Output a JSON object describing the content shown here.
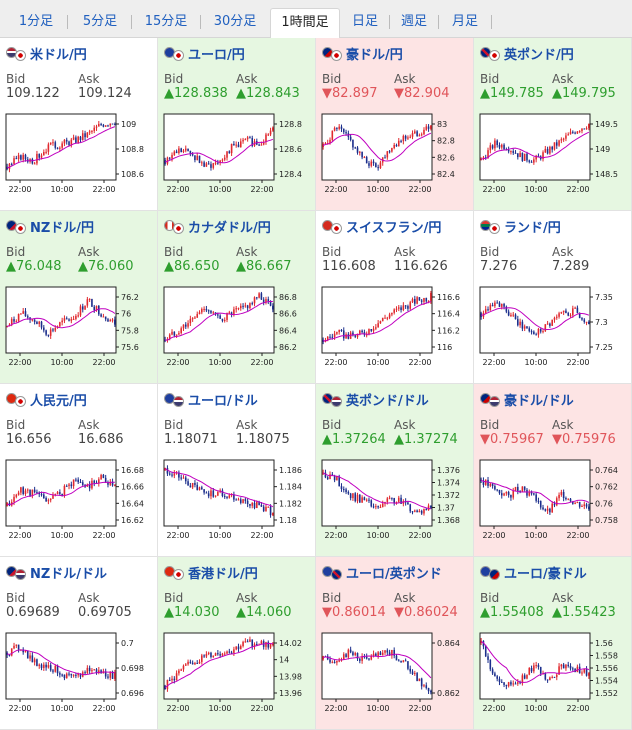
{
  "timeframe_tabs": [
    {
      "label": "1分足",
      "active": false
    },
    {
      "label": "5分足",
      "active": false
    },
    {
      "label": "15分足",
      "active": false
    },
    {
      "label": "30分足",
      "active": false
    },
    {
      "label": "1時間足",
      "active": true
    },
    {
      "label": "日足",
      "active": false
    },
    {
      "label": "週足",
      "active": false
    },
    {
      "label": "月足",
      "active": false
    }
  ],
  "labels": {
    "bid": "Bid",
    "ask": "Ask"
  },
  "colors": {
    "up": "#2e9e2e",
    "down": "#e0555a",
    "flat": "#444444",
    "link": "#1a4da8",
    "candle_up": "#e0282e",
    "candle_down": "#1b2e8c",
    "ma": "#c000c0"
  },
  "pairs": [
    {
      "name": "米ドル/円",
      "flags": [
        "usa-flag-icon",
        "japan-flag-icon"
      ],
      "bid": "109.122",
      "ask": "109.124",
      "trend": "flat",
      "chart": {
        "y_ticks": [
          "109",
          "108.8",
          "108.6"
        ],
        "x_ticks": [
          "22:00",
          "10:00",
          "22:00"
        ]
      }
    },
    {
      "name": "ユーロ/円",
      "flags": [
        "eu-flag-icon",
        "japan-flag-icon"
      ],
      "bid": "▲128.838",
      "ask": "▲128.843",
      "trend": "up",
      "chart": {
        "y_ticks": [
          "128.8",
          "128.6",
          "128.4"
        ],
        "x_ticks": [
          "22:00",
          "10:00",
          "22:00"
        ]
      }
    },
    {
      "name": "豪ドル/円",
      "flags": [
        "australia-flag-icon",
        "japan-flag-icon"
      ],
      "bid": "▼82.897",
      "ask": "▼82.904",
      "trend": "down",
      "chart": {
        "y_ticks": [
          "83",
          "82.8",
          "82.6",
          "82.4"
        ],
        "x_ticks": [
          "22:00",
          "10:00",
          "22:00"
        ]
      }
    },
    {
      "name": "英ポンド/円",
      "flags": [
        "uk-flag-icon",
        "japan-flag-icon"
      ],
      "bid": "▲149.785",
      "ask": "▲149.795",
      "trend": "up",
      "chart": {
        "y_ticks": [
          "149.5",
          "149",
          "148.5"
        ],
        "x_ticks": [
          "22:00",
          "10:00",
          "22:00"
        ]
      }
    },
    {
      "name": "NZドル/円",
      "flags": [
        "nz-flag-icon",
        "japan-flag-icon"
      ],
      "bid": "▲76.048",
      "ask": "▲76.060",
      "trend": "up",
      "chart": {
        "y_ticks": [
          "76.2",
          "76",
          "75.8",
          "75.6"
        ],
        "x_ticks": [
          "22:00",
          "10:00",
          "22:00"
        ]
      }
    },
    {
      "name": "カナダドル/円",
      "flags": [
        "canada-flag-icon",
        "japan-flag-icon"
      ],
      "bid": "▲86.650",
      "ask": "▲86.667",
      "trend": "up",
      "chart": {
        "y_ticks": [
          "86.8",
          "86.6",
          "86.4",
          "86.2"
        ],
        "x_ticks": [
          "22:00",
          "10:00",
          "22:00"
        ]
      }
    },
    {
      "name": "スイスフラン/円",
      "flags": [
        "swiss-flag-icon",
        "japan-flag-icon"
      ],
      "bid": "116.608",
      "ask": "116.626",
      "trend": "flat",
      "chart": {
        "y_ticks": [
          "116.6",
          "116.4",
          "116.2",
          "116"
        ],
        "x_ticks": [
          "22:00",
          "10:00",
          "22:00"
        ]
      }
    },
    {
      "name": "ランド/円",
      "flags": [
        "south-africa-flag-icon",
        "japan-flag-icon"
      ],
      "bid": "7.276",
      "ask": "7.289",
      "trend": "flat",
      "chart": {
        "y_ticks": [
          "7.35",
          "7.3",
          "7.25"
        ],
        "x_ticks": [
          "22:00",
          "10:00",
          "22:00"
        ]
      }
    },
    {
      "name": "人民元/円",
      "flags": [
        "china-flag-icon",
        "japan-flag-icon"
      ],
      "bid": "16.656",
      "ask": "16.686",
      "trend": "flat",
      "chart": {
        "y_ticks": [
          "16.68",
          "16.66",
          "16.64",
          "16.62"
        ],
        "x_ticks": [
          "22:00",
          "10:00",
          "22:00"
        ]
      }
    },
    {
      "name": "ユーロ/ドル",
      "flags": [
        "eu-flag-icon",
        "usa-flag-icon"
      ],
      "bid": "1.18071",
      "ask": "1.18075",
      "trend": "flat",
      "chart": {
        "y_ticks": [
          "1.186",
          "1.184",
          "1.182",
          "1.18"
        ],
        "x_ticks": [
          "22:00",
          "10:00",
          "22:00"
        ]
      }
    },
    {
      "name": "英ポンド/ドル",
      "flags": [
        "uk-flag-icon",
        "usa-flag-icon"
      ],
      "bid": "▲1.37264",
      "ask": "▲1.37274",
      "trend": "up",
      "chart": {
        "y_ticks": [
          "1.376",
          "1.374",
          "1.372",
          "1.37",
          "1.368"
        ],
        "x_ticks": [
          "22:00",
          "10:00",
          "22:00"
        ]
      }
    },
    {
      "name": "豪ドル/ドル",
      "flags": [
        "australia-flag-icon",
        "usa-flag-icon"
      ],
      "bid": "▼0.75967",
      "ask": "▼0.75976",
      "trend": "down",
      "chart": {
        "y_ticks": [
          "0.764",
          "0.762",
          "0.76",
          "0.758"
        ],
        "x_ticks": [
          "22:00",
          "10:00",
          "22:00"
        ]
      }
    },
    {
      "name": "NZドル/ドル",
      "flags": [
        "nz-flag-icon",
        "usa-flag-icon"
      ],
      "bid": "0.69689",
      "ask": "0.69705",
      "trend": "flat",
      "chart": {
        "y_ticks": [
          "0.7",
          "0.698",
          "0.696"
        ],
        "x_ticks": [
          "22:00",
          "10:00",
          "22:00"
        ]
      }
    },
    {
      "name": "香港ドル/円",
      "flags": [
        "hongkong-flag-icon",
        "japan-flag-icon"
      ],
      "bid": "▲14.030",
      "ask": "▲14.060",
      "trend": "up",
      "chart": {
        "y_ticks": [
          "14.02",
          "14",
          "13.98",
          "13.96"
        ],
        "x_ticks": [
          "22:00",
          "10:00",
          "22:00"
        ]
      }
    },
    {
      "name": "ユーロ/英ポンド",
      "flags": [
        "eu-flag-icon",
        "uk-flag-icon"
      ],
      "bid": "▼0.86014",
      "ask": "▼0.86024",
      "trend": "down",
      "chart": {
        "y_ticks": [
          "0.864",
          "0.862"
        ],
        "x_ticks": [
          "22:00",
          "10:00",
          "22:00"
        ]
      }
    },
    {
      "name": "ユーロ/豪ドル",
      "flags": [
        "eu-flag-icon",
        "australia-flag-icon"
      ],
      "bid": "▲1.55408",
      "ask": "▲1.55423",
      "trend": "up",
      "chart": {
        "y_ticks": [
          "1.56",
          "1.558",
          "1.556",
          "1.554",
          "1.552"
        ],
        "x_ticks": [
          "22:00",
          "10:00",
          "22:00"
        ]
      }
    }
  ]
}
